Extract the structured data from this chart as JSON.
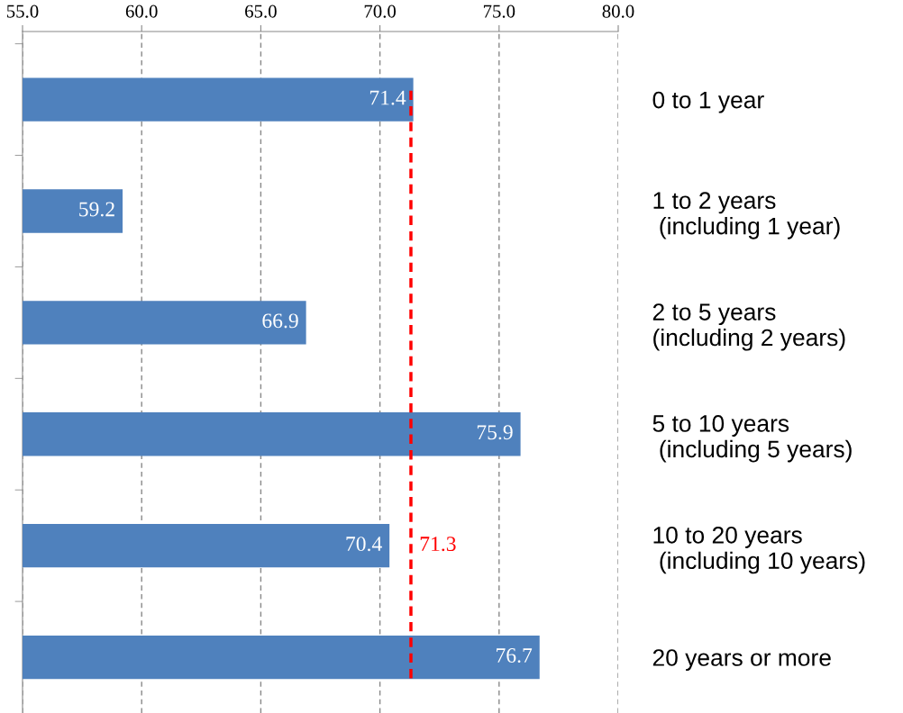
{
  "chart_data": {
    "type": "bar",
    "orientation": "horizontal",
    "categories": [
      "0 to 1 year",
      "1 to 2 years\n (including 1 year)",
      "2 to 5 years\n(including 2 years)",
      "5 to 10 years\n (including 5 years)",
      "10 to 20 years\n (including 10 years)",
      "20 years or more"
    ],
    "values": [
      71.4,
      59.2,
      66.9,
      75.9,
      70.4,
      76.7
    ],
    "color": "#4f81bd",
    "data_labels": true,
    "xlim": [
      55,
      80
    ],
    "xticks": [
      {
        "value": 55,
        "label": "55.0"
      },
      {
        "value": 60,
        "label": "60.0"
      },
      {
        "value": 65,
        "label": "65.0"
      },
      {
        "value": 70,
        "label": "70.0"
      },
      {
        "value": 75,
        "label": "75.0"
      },
      {
        "value": 80,
        "label": "80.0"
      }
    ],
    "ref_lines": [
      {
        "axis": "x",
        "value": 71.3,
        "label": "71.3",
        "color": "#ff0000",
        "line_style": "dashed"
      }
    ],
    "grid": "x"
  }
}
